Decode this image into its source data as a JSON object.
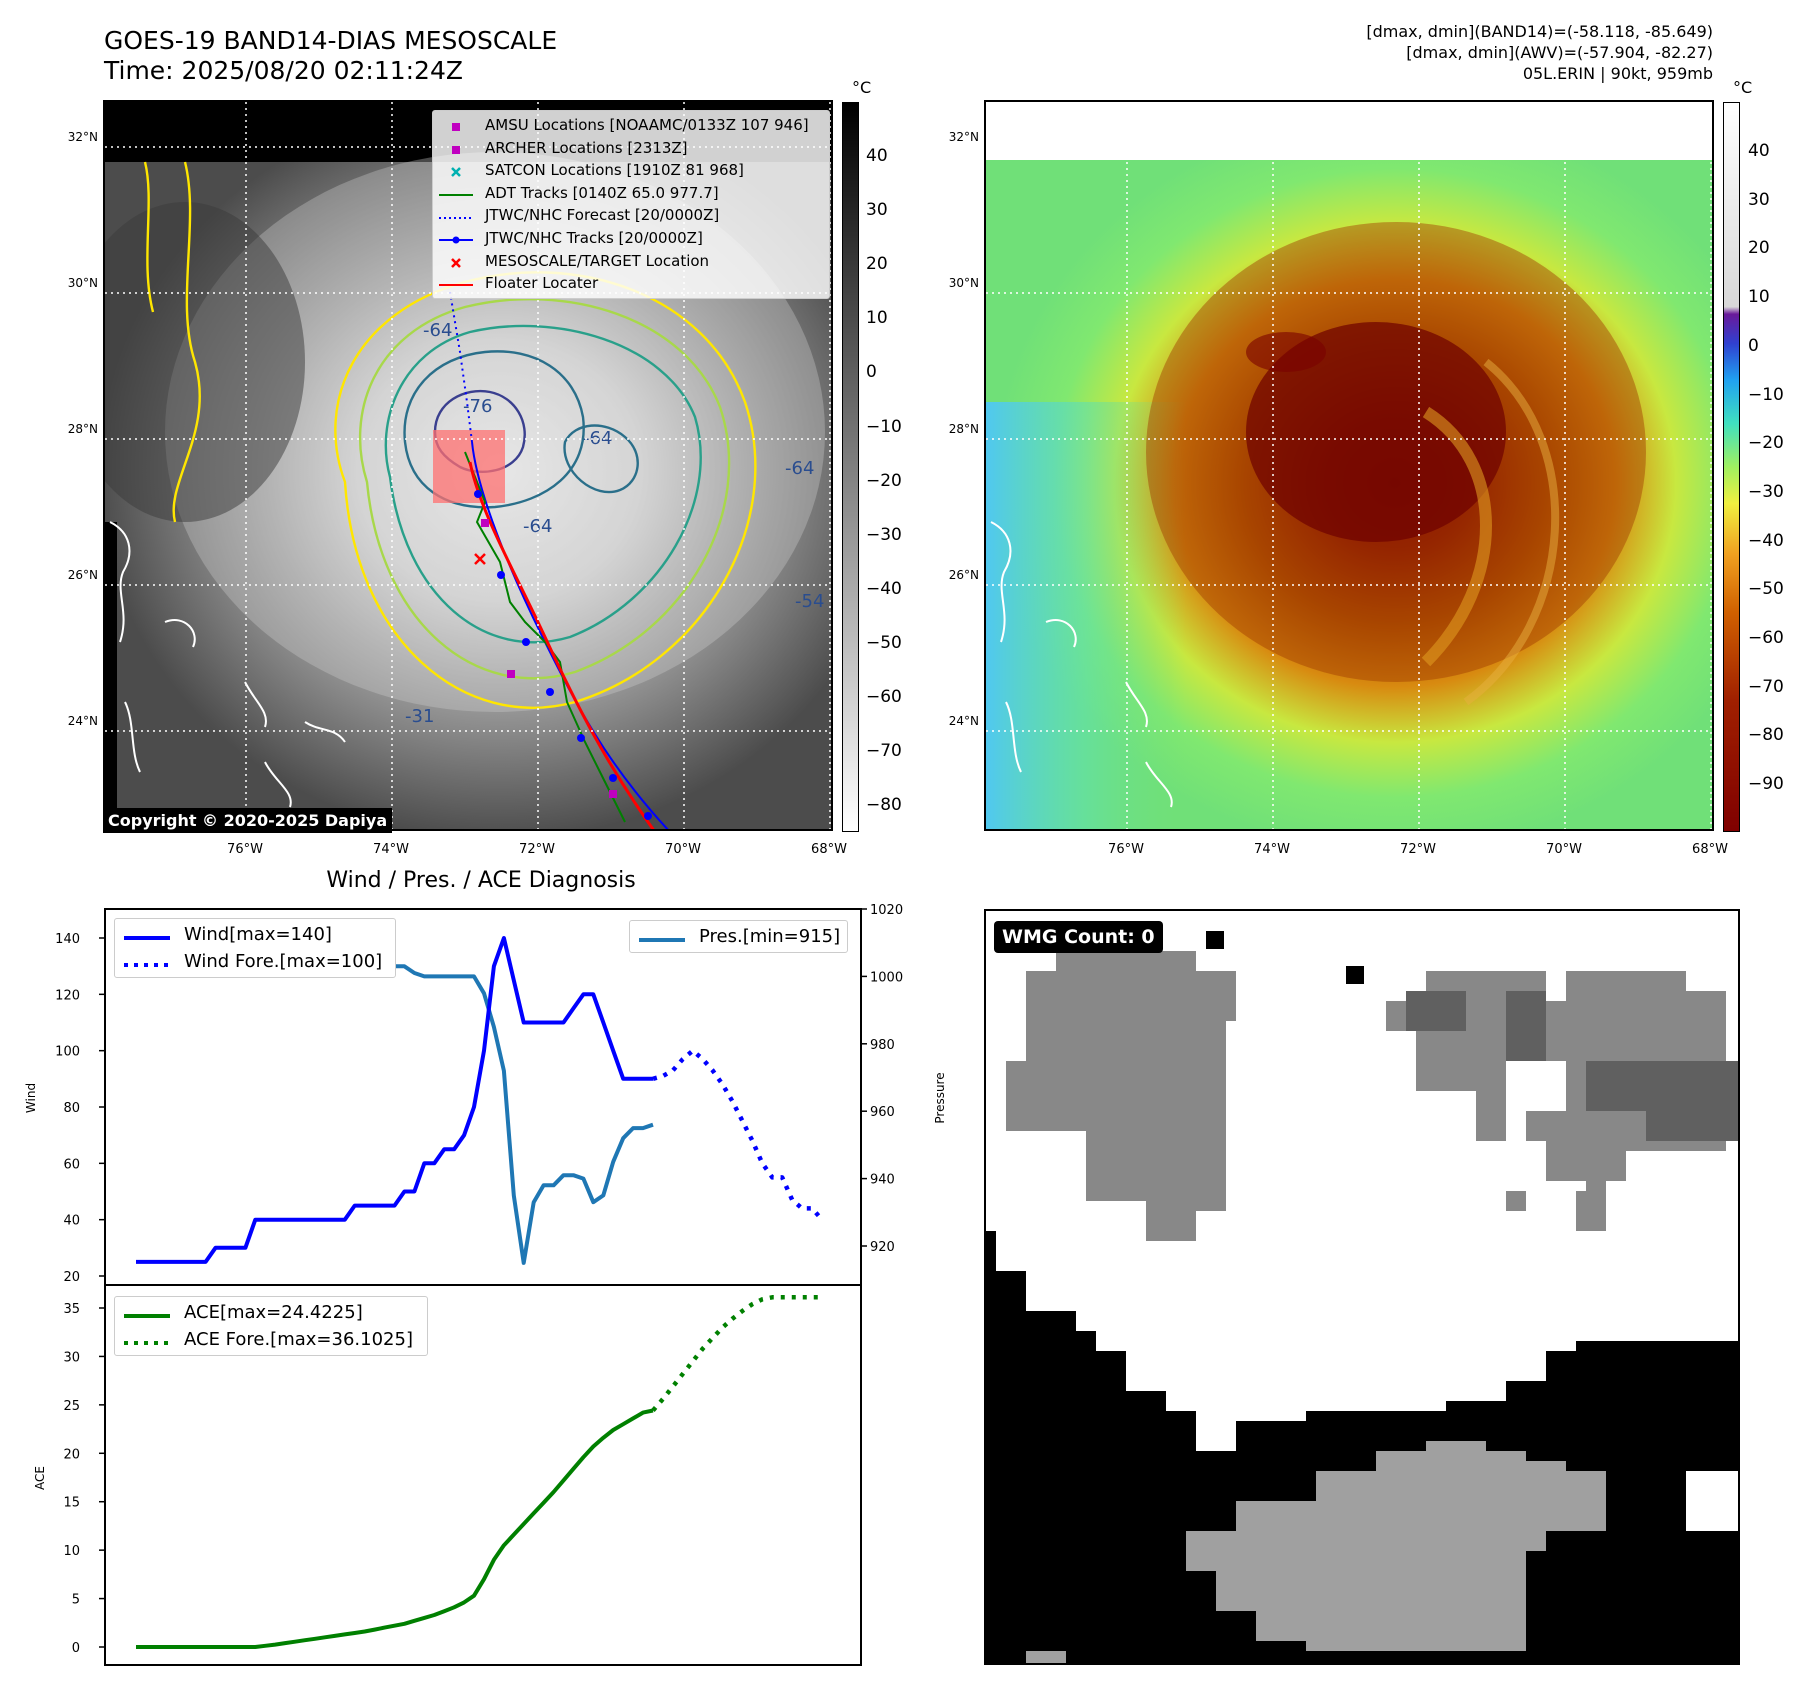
{
  "header": {
    "title_line1": "GOES-19 BAND14-DIAS MESOSCALE",
    "title_line2": "Time: 2025/08/20 02:11:24Z",
    "info_line1": "[dmax, dmin](BAND14)=(-58.118, -85.649)",
    "info_line2": "[dmax, dmin](AWV)=(-57.904, -82.27)",
    "info_line3": "05L.ERIN | 90kt, 959mb"
  },
  "map_axes": {
    "lat_labels": [
      "32°N",
      "30°N",
      "28°N",
      "26°N",
      "24°N"
    ],
    "lon_labels": [
      "76°W",
      "74°W",
      "72°W",
      "70°W",
      "68°W"
    ]
  },
  "colorbar_left": {
    "unit": "°C",
    "ticks": [
      "40",
      "30",
      "20",
      "10",
      "0",
      "−10",
      "−20",
      "−30",
      "−40",
      "−50",
      "−60",
      "−70",
      "−80"
    ]
  },
  "colorbar_right": {
    "unit": "°C",
    "ticks": [
      "40",
      "30",
      "20",
      "10",
      "0",
      "−10",
      "−20",
      "−30",
      "−40",
      "−50",
      "−60",
      "−70",
      "−80",
      "−90"
    ]
  },
  "legend_map": [
    {
      "label": "AMSU Locations [NOAAMC/0133Z 107 946]",
      "symbol": "square",
      "color": "#c000c0"
    },
    {
      "label": "ARCHER Locations [2313Z]",
      "symbol": "square",
      "color": "#c000c0"
    },
    {
      "label": "SATCON Locations [1910Z 81 968]",
      "symbol": "x",
      "color": "#00b0b0"
    },
    {
      "label": "ADT Tracks [0140Z 65.0 977.7]",
      "symbol": "line",
      "color": "#008000"
    },
    {
      "label": "JTWC/NHC Forecast [20/0000Z]",
      "symbol": "dotted",
      "color": "#0000ff"
    },
    {
      "label": "JTWC/NHC Tracks [20/0000Z]",
      "symbol": "line-dot",
      "color": "#0000ff"
    },
    {
      "label": "MESOSCALE/TARGET Location",
      "symbol": "x",
      "color": "#ff0000"
    },
    {
      "label": "Floater Locater",
      "symbol": "line",
      "color": "#ff0000"
    }
  ],
  "contour_labels": [
    "-64",
    "-76",
    "-64",
    "-64",
    "-54",
    "-31",
    "-64"
  ],
  "copyright": "Copyright © 2020-2025 Dapiya",
  "wmg_label": "WMG Count: 0",
  "colors": {
    "wind": "#0000ff",
    "pressure": "#1f77b4",
    "ace": "#008000"
  },
  "chart_data": [
    {
      "type": "line",
      "title": "Wind / Pres. / ACE Diagnosis",
      "ylabel": "Wind",
      "ylabel_right": "Pressure",
      "ylim": [
        20,
        145
      ],
      "ylim_right": [
        915,
        1020
      ],
      "yticks": [
        "20",
        "40",
        "60",
        "80",
        "100",
        "120",
        "140"
      ],
      "yticks_right": [
        "920",
        "940",
        "960",
        "980",
        "1000",
        "1020"
      ],
      "series": [
        {
          "name": "Wind[max=140]",
          "style": "solid",
          "values": [
            25,
            25,
            25,
            25,
            25,
            25,
            25,
            25,
            30,
            30,
            30,
            30,
            40,
            40,
            40,
            40,
            40,
            40,
            40,
            40,
            40,
            40,
            45,
            45,
            45,
            45,
            45,
            50,
            50,
            60,
            60,
            65,
            65,
            70,
            80,
            100,
            130,
            140,
            125,
            110,
            110,
            110,
            110,
            110,
            115,
            120,
            120,
            110,
            100,
            90,
            90,
            90,
            90
          ]
        },
        {
          "name": "Wind Fore.[max=100]",
          "style": "dotted",
          "values_from_index": 52,
          "values": [
            90,
            91,
            93,
            97,
            100,
            97,
            93,
            88,
            82,
            75,
            68,
            60,
            55,
            55,
            47,
            44,
            44,
            40
          ]
        },
        {
          "name": "Pres.[min=915]",
          "style": "solid",
          "axis": "right",
          "values": [
            1015,
            1015,
            1010,
            1009,
            1008,
            1008,
            1008,
            1008,
            1008,
            1008,
            1008,
            1008,
            1007,
            1007,
            1006,
            1006,
            1007,
            1006,
            1006,
            1005,
            1005,
            1005,
            1005,
            1003,
            1003,
            1003,
            1003,
            1003,
            1001,
            1000,
            1000,
            1000,
            1000,
            1000,
            1000,
            995,
            985,
            972,
            935,
            915,
            933,
            938,
            938,
            941,
            941,
            940,
            933,
            935,
            945,
            952,
            955,
            955,
            956
          ]
        }
      ]
    },
    {
      "type": "line",
      "ylabel": "ACE",
      "ylim": [
        -1,
        37
      ],
      "yticks": [
        "0",
        "5",
        "10",
        "15",
        "20",
        "25",
        "30",
        "35"
      ],
      "series": [
        {
          "name": "ACE[max=24.4225]",
          "style": "solid",
          "values": [
            0,
            0,
            0,
            0,
            0,
            0,
            0,
            0,
            0,
            0,
            0,
            0,
            0,
            0.12,
            0.25,
            0.4,
            0.55,
            0.7,
            0.85,
            1.0,
            1.15,
            1.3,
            1.45,
            1.6,
            1.8,
            2.0,
            2.2,
            2.4,
            2.7,
            3.0,
            3.3,
            3.7,
            4.1,
            4.6,
            5.3,
            7.0,
            9.0,
            10.5,
            11.6,
            12.7,
            13.8,
            14.9,
            16.0,
            17.2,
            18.4,
            19.6,
            20.7,
            21.6,
            22.4,
            23.0,
            23.6,
            24.2,
            24.4225
          ]
        },
        {
          "name": "ACE Fore.[max=36.1025]",
          "style": "dotted",
          "values_from_index": 52,
          "values": [
            24.4225,
            25.6,
            26.9,
            28.2,
            29.5,
            30.8,
            31.9,
            33.0,
            33.9,
            34.7,
            35.4,
            35.9,
            36.1025,
            36.1025,
            36.1025,
            36.1025,
            36.1025,
            36.1025
          ]
        }
      ]
    }
  ]
}
